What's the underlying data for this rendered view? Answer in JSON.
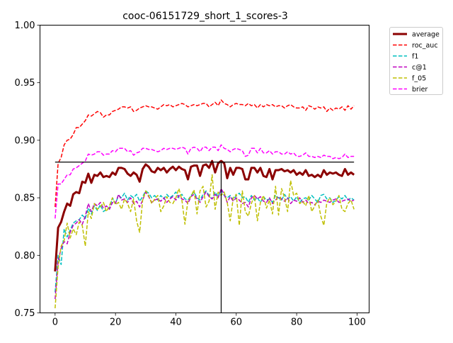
{
  "chart_data": {
    "type": "line",
    "title": "cooc-06151729_short_1_scores-3",
    "xlabel": "",
    "ylabel": "",
    "xlim": [
      -5,
      104
    ],
    "ylim": [
      0.75,
      1.0
    ],
    "xticks": [
      0,
      20,
      40,
      60,
      80,
      100
    ],
    "yticks": [
      0.75,
      0.8,
      0.85,
      0.9,
      0.95,
      1.0
    ],
    "xtick_labels": [
      "0",
      "20",
      "40",
      "60",
      "80",
      "100"
    ],
    "ytick_labels": [
      "0.75",
      "0.80",
      "0.85",
      "0.90",
      "0.95",
      "1.00"
    ],
    "grid": false,
    "legend_position": "outside-top-right",
    "reference_lines": {
      "hline": {
        "y": 0.881,
        "x_from": 0,
        "x_to": 99
      },
      "vline": {
        "x": 55,
        "y_from": 0.75,
        "y_to": 0.881
      }
    },
    "series": [
      {
        "name": "average",
        "color": "#8b0000",
        "style": "solid",
        "width": 3,
        "values": [
          0.786,
          0.824,
          0.829,
          0.838,
          0.845,
          0.843,
          0.853,
          0.855,
          0.854,
          0.864,
          0.863,
          0.871,
          0.863,
          0.87,
          0.869,
          0.872,
          0.868,
          0.869,
          0.868,
          0.872,
          0.87,
          0.876,
          0.876,
          0.875,
          0.871,
          0.869,
          0.872,
          0.87,
          0.864,
          0.875,
          0.879,
          0.877,
          0.873,
          0.872,
          0.876,
          0.874,
          0.876,
          0.872,
          0.875,
          0.877,
          0.874,
          0.877,
          0.875,
          0.874,
          0.866,
          0.877,
          0.878,
          0.878,
          0.869,
          0.878,
          0.879,
          0.876,
          0.882,
          0.872,
          0.88,
          0.882,
          0.88,
          0.867,
          0.876,
          0.87,
          0.876,
          0.876,
          0.875,
          0.866,
          0.866,
          0.876,
          0.876,
          0.872,
          0.876,
          0.869,
          0.868,
          0.875,
          0.866,
          0.874,
          0.874,
          0.875,
          0.873,
          0.874,
          0.872,
          0.874,
          0.87,
          0.872,
          0.87,
          0.874,
          0.869,
          0.87,
          0.868,
          0.87,
          0.868,
          0.874,
          0.87,
          0.872,
          0.871,
          0.872,
          0.87,
          0.869,
          0.875,
          0.87,
          0.872,
          0.87
        ]
      },
      {
        "name": "roc_auc",
        "color": "#ff0000",
        "style": "dashed",
        "width": 1.5,
        "values": [
          0.842,
          0.88,
          0.885,
          0.896,
          0.9,
          0.901,
          0.905,
          0.911,
          0.911,
          0.914,
          0.917,
          0.922,
          0.921,
          0.923,
          0.925,
          0.924,
          0.92,
          0.922,
          0.922,
          0.925,
          0.926,
          0.927,
          0.929,
          0.929,
          0.928,
          0.929,
          0.925,
          0.926,
          0.928,
          0.929,
          0.93,
          0.929,
          0.929,
          0.928,
          0.927,
          0.929,
          0.931,
          0.93,
          0.931,
          0.929,
          0.93,
          0.931,
          0.932,
          0.931,
          0.929,
          0.93,
          0.931,
          0.93,
          0.931,
          0.932,
          0.932,
          0.929,
          0.931,
          0.933,
          0.93,
          0.935,
          0.932,
          0.931,
          0.929,
          0.931,
          0.932,
          0.931,
          0.931,
          0.93,
          0.932,
          0.93,
          0.931,
          0.928,
          0.931,
          0.929,
          0.931,
          0.93,
          0.931,
          0.929,
          0.93,
          0.93,
          0.928,
          0.93,
          0.931,
          0.929,
          0.928,
          0.928,
          0.929,
          0.926,
          0.93,
          0.929,
          0.927,
          0.929,
          0.928,
          0.929,
          0.925,
          0.928,
          0.926,
          0.928,
          0.927,
          0.929,
          0.926,
          0.93,
          0.927,
          0.93
        ]
      },
      {
        "name": "f1",
        "color": "#00bfbf",
        "style": "dashed",
        "width": 1.5,
        "values": [
          0.768,
          0.8,
          0.792,
          0.823,
          0.816,
          0.822,
          0.828,
          0.83,
          0.831,
          0.835,
          0.832,
          0.841,
          0.836,
          0.843,
          0.839,
          0.844,
          0.838,
          0.84,
          0.841,
          0.85,
          0.845,
          0.852,
          0.85,
          0.854,
          0.848,
          0.852,
          0.85,
          0.853,
          0.847,
          0.851,
          0.856,
          0.854,
          0.85,
          0.852,
          0.848,
          0.852,
          0.849,
          0.853,
          0.85,
          0.852,
          0.855,
          0.85,
          0.853,
          0.849,
          0.848,
          0.852,
          0.855,
          0.85,
          0.848,
          0.853,
          0.856,
          0.852,
          0.849,
          0.855,
          0.851,
          0.857,
          0.852,
          0.85,
          0.852,
          0.848,
          0.852,
          0.854,
          0.85,
          0.851,
          0.846,
          0.852,
          0.848,
          0.85,
          0.846,
          0.851,
          0.848,
          0.849,
          0.846,
          0.852,
          0.85,
          0.848,
          0.853,
          0.849,
          0.851,
          0.847,
          0.851,
          0.846,
          0.849,
          0.85,
          0.848,
          0.852,
          0.849,
          0.846,
          0.852,
          0.853,
          0.849,
          0.85,
          0.846,
          0.848,
          0.851,
          0.849,
          0.852,
          0.848,
          0.85,
          0.848
        ]
      },
      {
        "name": "c@1",
        "color": "#bf00bf",
        "style": "dashed",
        "width": 1.5,
        "values": [
          0.762,
          0.795,
          0.806,
          0.812,
          0.81,
          0.82,
          0.826,
          0.828,
          0.831,
          0.827,
          0.834,
          0.845,
          0.838,
          0.845,
          0.843,
          0.846,
          0.841,
          0.843,
          0.84,
          0.846,
          0.845,
          0.853,
          0.848,
          0.849,
          0.846,
          0.85,
          0.845,
          0.847,
          0.842,
          0.848,
          0.855,
          0.851,
          0.846,
          0.848,
          0.849,
          0.847,
          0.85,
          0.846,
          0.849,
          0.851,
          0.848,
          0.852,
          0.849,
          0.848,
          0.845,
          0.851,
          0.853,
          0.849,
          0.846,
          0.851,
          0.855,
          0.851,
          0.849,
          0.853,
          0.85,
          0.858,
          0.853,
          0.846,
          0.851,
          0.847,
          0.85,
          0.848,
          0.845,
          0.846,
          0.842,
          0.85,
          0.852,
          0.849,
          0.851,
          0.847,
          0.846,
          0.85,
          0.845,
          0.848,
          0.851,
          0.849,
          0.847,
          0.85,
          0.845,
          0.848,
          0.847,
          0.85,
          0.846,
          0.848,
          0.845,
          0.846,
          0.844,
          0.847,
          0.846,
          0.848,
          0.847,
          0.846,
          0.848,
          0.849,
          0.846,
          0.847,
          0.848,
          0.849,
          0.847,
          0.848
        ]
      },
      {
        "name": "f_05",
        "color": "#bfbf00",
        "style": "dashed",
        "width": 1.5,
        "values": [
          0.754,
          0.79,
          0.808,
          0.813,
          0.828,
          0.815,
          0.823,
          0.818,
          0.829,
          0.826,
          0.808,
          0.838,
          0.832,
          0.845,
          0.84,
          0.842,
          0.846,
          0.838,
          0.843,
          0.85,
          0.844,
          0.846,
          0.84,
          0.849,
          0.845,
          0.838,
          0.849,
          0.83,
          0.82,
          0.848,
          0.856,
          0.852,
          0.845,
          0.849,
          0.852,
          0.838,
          0.843,
          0.851,
          0.846,
          0.845,
          0.85,
          0.858,
          0.848,
          0.827,
          0.848,
          0.851,
          0.857,
          0.836,
          0.856,
          0.86,
          0.842,
          0.847,
          0.87,
          0.84,
          0.855,
          0.852,
          0.855,
          0.846,
          0.83,
          0.85,
          0.853,
          0.826,
          0.856,
          0.838,
          0.834,
          0.845,
          0.852,
          0.83,
          0.846,
          0.852,
          0.841,
          0.848,
          0.836,
          0.86,
          0.835,
          0.858,
          0.85,
          0.838,
          0.865,
          0.852,
          0.854,
          0.845,
          0.847,
          0.843,
          0.852,
          0.838,
          0.843,
          0.848,
          0.834,
          0.826,
          0.846,
          0.85,
          0.844,
          0.847,
          0.852,
          0.84,
          0.838,
          0.845,
          0.848,
          0.84
        ]
      },
      {
        "name": "brier",
        "color": "#ff00ff",
        "style": "dashed",
        "width": 1.5,
        "values": [
          0.832,
          0.862,
          0.862,
          0.866,
          0.87,
          0.87,
          0.875,
          0.876,
          0.878,
          0.88,
          0.882,
          0.888,
          0.887,
          0.888,
          0.89,
          0.89,
          0.887,
          0.888,
          0.888,
          0.891,
          0.89,
          0.893,
          0.893,
          0.893,
          0.89,
          0.891,
          0.887,
          0.889,
          0.89,
          0.893,
          0.893,
          0.892,
          0.892,
          0.891,
          0.89,
          0.891,
          0.893,
          0.892,
          0.893,
          0.893,
          0.892,
          0.893,
          0.894,
          0.893,
          0.888,
          0.893,
          0.894,
          0.893,
          0.89,
          0.894,
          0.894,
          0.891,
          0.894,
          0.894,
          0.891,
          0.896,
          0.893,
          0.892,
          0.89,
          0.892,
          0.893,
          0.892,
          0.891,
          0.886,
          0.887,
          0.893,
          0.893,
          0.889,
          0.893,
          0.889,
          0.889,
          0.891,
          0.888,
          0.89,
          0.89,
          0.888,
          0.888,
          0.89,
          0.888,
          0.889,
          0.886,
          0.886,
          0.887,
          0.889,
          0.886,
          0.886,
          0.885,
          0.886,
          0.885,
          0.887,
          0.886,
          0.886,
          0.884,
          0.885,
          0.884,
          0.885,
          0.888,
          0.885,
          0.886,
          0.886
        ]
      }
    ]
  }
}
